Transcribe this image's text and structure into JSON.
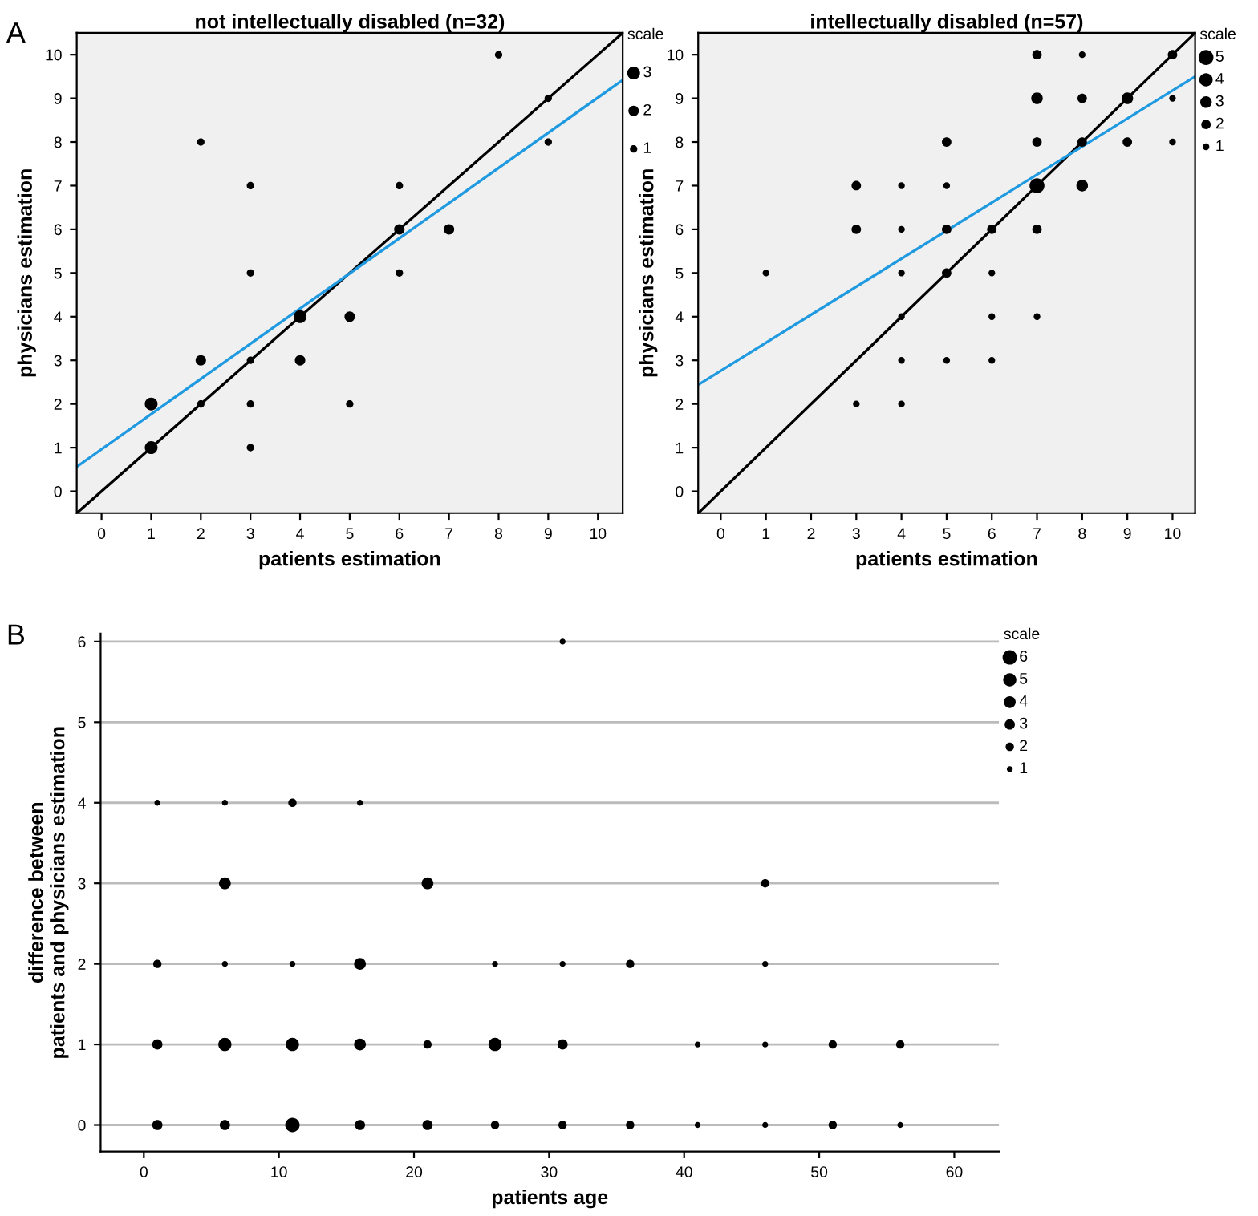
{
  "chart_data": [
    {
      "type": "bubble",
      "title": "not intellectually disabled (n=32)",
      "xlabel": "patients estimation",
      "ylabel": "physicians estimation",
      "xlim": [
        -0.5,
        10.5
      ],
      "ylim": [
        -0.5,
        10.5
      ],
      "xticks": [
        0,
        1,
        2,
        3,
        4,
        5,
        6,
        7,
        8,
        9,
        10
      ],
      "yticks": [
        0,
        1,
        2,
        3,
        4,
        5,
        6,
        7,
        8,
        9,
        10
      ],
      "grid": false,
      "legend_title": "scale",
      "size_legend": [
        3,
        2,
        1
      ],
      "annotations": [
        "A"
      ],
      "series": [
        {
          "marker": "circle",
          "color": "#000000",
          "x": [
            8,
            9,
            9,
            2,
            3,
            6,
            6,
            7,
            3,
            6,
            4,
            5,
            2,
            4,
            3,
            1,
            2,
            3,
            5,
            1,
            3
          ],
          "values": [
            10,
            9,
            8,
            8,
            7,
            7,
            6,
            6,
            5,
            5,
            4,
            4,
            3,
            3,
            3,
            2,
            2,
            2,
            2,
            1,
            1
          ],
          "sizes": [
            1,
            1,
            1,
            1,
            1,
            1,
            2,
            2,
            1,
            1,
            3,
            2,
            2,
            2,
            1,
            3,
            1,
            1,
            1,
            3,
            1
          ]
        },
        {
          "type": "line",
          "color": "#000000",
          "x": [
            -0.5,
            10.5
          ],
          "values": [
            -0.5,
            10.5
          ]
        },
        {
          "type": "line",
          "color": "#1f9ae0",
          "x": [
            -0.5,
            10.5
          ],
          "values": [
            0.56,
            9.42
          ]
        }
      ]
    },
    {
      "type": "bubble",
      "title": "intellectually disabled (n=57)",
      "xlabel": "patients estimation",
      "ylabel": "physicians estimation",
      "xlim": [
        -0.5,
        10.5
      ],
      "ylim": [
        -0.5,
        10.5
      ],
      "xticks": [
        0,
        1,
        2,
        3,
        4,
        5,
        6,
        7,
        8,
        9,
        10
      ],
      "yticks": [
        0,
        1,
        2,
        3,
        4,
        5,
        6,
        7,
        8,
        9,
        10
      ],
      "grid": false,
      "legend_title": "scale",
      "size_legend": [
        5,
        4,
        3,
        2,
        1
      ],
      "series": [
        {
          "marker": "circle",
          "color": "#000000",
          "x": [
            7,
            8,
            10,
            7,
            8,
            9,
            10,
            5,
            7,
            8,
            9,
            10,
            3,
            4,
            5,
            7,
            8,
            3,
            4,
            5,
            6,
            7,
            1,
            4,
            5,
            6,
            4,
            6,
            7,
            4,
            5,
            6,
            3,
            4
          ],
          "values": [
            10,
            10,
            10,
            9,
            9,
            9,
            9,
            8,
            8,
            8,
            8,
            8,
            7,
            7,
            7,
            7,
            7,
            6,
            6,
            6,
            6,
            6,
            5,
            5,
            5,
            5,
            4,
            4,
            4,
            3,
            3,
            3,
            2,
            2
          ],
          "sizes": [
            2,
            1,
            2,
            3,
            2,
            3,
            1,
            2,
            2,
            2,
            2,
            1,
            2,
            1,
            1,
            5,
            3,
            2,
            1,
            2,
            2,
            2,
            1,
            1,
            2,
            1,
            1,
            1,
            1,
            1,
            1,
            1,
            1,
            1
          ]
        },
        {
          "type": "line",
          "color": "#000000",
          "x": [
            -0.5,
            10.5
          ],
          "values": [
            -0.5,
            10.5
          ]
        },
        {
          "type": "line",
          "color": "#1f9ae0",
          "x": [
            -0.5,
            10.5
          ],
          "values": [
            2.44,
            9.5
          ]
        }
      ]
    },
    {
      "type": "bubble",
      "xlabel": "patients age",
      "ylabel": "difference between\npatients and physicians estimation",
      "xlim": [
        -3.2,
        63.3
      ],
      "ylim": [
        -0.33,
        6.1
      ],
      "xticks": [
        0,
        10,
        20,
        30,
        40,
        50,
        60
      ],
      "yticks": [
        0,
        1,
        2,
        3,
        4,
        5,
        6
      ],
      "grid": "y",
      "legend_title": "scale",
      "size_legend": [
        6,
        5,
        4,
        3,
        2,
        1
      ],
      "annotations": [
        "B"
      ],
      "series": [
        {
          "marker": "circle",
          "color": "#000000",
          "x": [
            1,
            6,
            11,
            16,
            21,
            26,
            31,
            36,
            41,
            46,
            51,
            56,
            1,
            6,
            11,
            16,
            21,
            26,
            31,
            41,
            46,
            51,
            56,
            1,
            6,
            11,
            16,
            26,
            31,
            36,
            46,
            6,
            21,
            46,
            1,
            6,
            11,
            16,
            31
          ],
          "values": [
            0,
            0,
            0,
            0,
            0,
            0,
            0,
            0,
            0,
            0,
            0,
            0,
            1,
            1,
            1,
            1,
            1,
            1,
            1,
            1,
            1,
            1,
            1,
            2,
            2,
            2,
            2,
            2,
            2,
            2,
            2,
            3,
            3,
            3,
            4,
            4,
            4,
            4,
            6
          ],
          "sizes": [
            3,
            3,
            6,
            3,
            3,
            2,
            2,
            2,
            1,
            1,
            2,
            1,
            3,
            5,
            5,
            4,
            2,
            5,
            3,
            1,
            1,
            2,
            2,
            2,
            1,
            1,
            4,
            1,
            1,
            2,
            1,
            4,
            4,
            2,
            1,
            1,
            2,
            1,
            1
          ]
        }
      ]
    }
  ]
}
